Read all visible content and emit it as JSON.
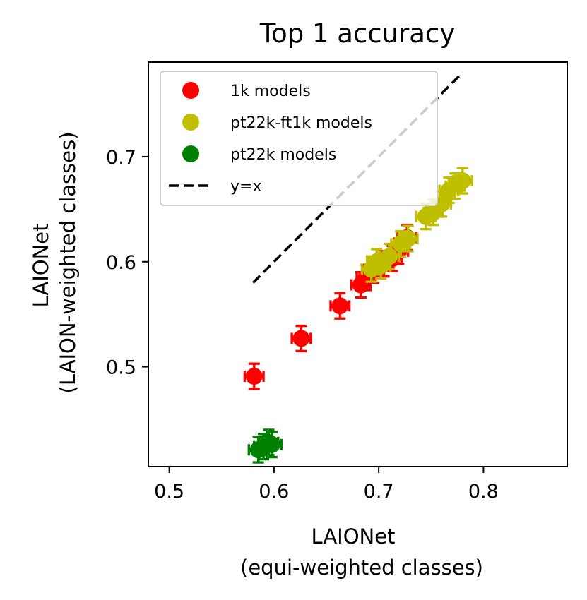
{
  "chart_data": {
    "type": "scatter",
    "title": "Top 1 accuracy",
    "xlabel_lines": [
      "LAIONet",
      "(equi-weighted classes)"
    ],
    "ylabel_lines": [
      "LAIONet",
      "(LAION-weighted classes)"
    ],
    "xlim": [
      0.48,
      0.88
    ],
    "ylim": [
      0.405,
      0.79
    ],
    "xticks": [
      0.5,
      0.6,
      0.7,
      0.8
    ],
    "xtick_labels": [
      "0.5",
      "0.6",
      "0.7",
      "0.8"
    ],
    "yticks": [
      0.5,
      0.6,
      0.7
    ],
    "ytick_labels": [
      "0.5",
      "0.6",
      "0.7"
    ],
    "grid": false,
    "legend_position": "upper-left",
    "series": [
      {
        "name": "1k models",
        "color": "#ff0000",
        "marker": "circle",
        "error_bars": true,
        "points": [
          {
            "x": 0.581,
            "y": 0.491,
            "xerr": 0.009,
            "yerr": 0.012
          },
          {
            "x": 0.626,
            "y": 0.527,
            "xerr": 0.009,
            "yerr": 0.012
          },
          {
            "x": 0.663,
            "y": 0.558,
            "xerr": 0.009,
            "yerr": 0.012
          },
          {
            "x": 0.683,
            "y": 0.578,
            "xerr": 0.009,
            "yerr": 0.012
          },
          {
            "x": 0.688,
            "y": 0.585,
            "xerr": 0.009,
            "yerr": 0.012
          },
          {
            "x": 0.695,
            "y": 0.592,
            "xerr": 0.009,
            "yerr": 0.012
          },
          {
            "x": 0.705,
            "y": 0.598,
            "xerr": 0.009,
            "yerr": 0.012
          },
          {
            "x": 0.713,
            "y": 0.603,
            "xerr": 0.009,
            "yerr": 0.012
          },
          {
            "x": 0.719,
            "y": 0.61,
            "xerr": 0.009,
            "yerr": 0.012
          },
          {
            "x": 0.727,
            "y": 0.623,
            "xerr": 0.009,
            "yerr": 0.012
          }
        ]
      },
      {
        "name": "pt22k-ft1k models",
        "color": "#bfbf00",
        "marker": "circle",
        "error_bars": true,
        "points": [
          {
            "x": 0.693,
            "y": 0.593,
            "xerr": 0.009,
            "yerr": 0.012
          },
          {
            "x": 0.698,
            "y": 0.6,
            "xerr": 0.009,
            "yerr": 0.012
          },
          {
            "x": 0.702,
            "y": 0.596,
            "xerr": 0.009,
            "yerr": 0.012
          },
          {
            "x": 0.71,
            "y": 0.605,
            "xerr": 0.009,
            "yerr": 0.012
          },
          {
            "x": 0.721,
            "y": 0.617,
            "xerr": 0.009,
            "yerr": 0.012
          },
          {
            "x": 0.728,
            "y": 0.622,
            "xerr": 0.009,
            "yerr": 0.012
          },
          {
            "x": 0.745,
            "y": 0.643,
            "xerr": 0.009,
            "yerr": 0.012
          },
          {
            "x": 0.752,
            "y": 0.647,
            "xerr": 0.009,
            "yerr": 0.012
          },
          {
            "x": 0.76,
            "y": 0.655,
            "xerr": 0.009,
            "yerr": 0.012
          },
          {
            "x": 0.767,
            "y": 0.668,
            "xerr": 0.009,
            "yerr": 0.012
          },
          {
            "x": 0.773,
            "y": 0.672,
            "xerr": 0.009,
            "yerr": 0.012
          },
          {
            "x": 0.78,
            "y": 0.677,
            "xerr": 0.009,
            "yerr": 0.012
          }
        ]
      },
      {
        "name": "pt22k models",
        "color": "#008000",
        "marker": "circle",
        "error_bars": true,
        "points": [
          {
            "x": 0.585,
            "y": 0.421,
            "xerr": 0.009,
            "yerr": 0.012
          },
          {
            "x": 0.59,
            "y": 0.424,
            "xerr": 0.009,
            "yerr": 0.012
          },
          {
            "x": 0.595,
            "y": 0.428,
            "xerr": 0.009,
            "yerr": 0.012
          },
          {
            "x": 0.598,
            "y": 0.426,
            "xerr": 0.009,
            "yerr": 0.012
          }
        ]
      },
      {
        "name": "y=x",
        "color": "#000000",
        "marker": "dashed-line",
        "error_bars": false,
        "line": {
          "x": [
            0.58,
            0.78
          ],
          "y": [
            0.58,
            0.78
          ]
        }
      }
    ]
  }
}
